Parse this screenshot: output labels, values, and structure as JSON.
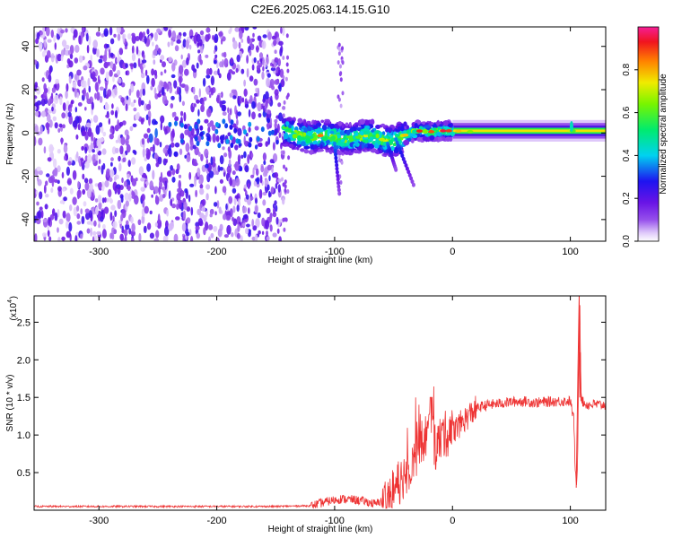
{
  "title": "C2E6.2025.063.14.15.G10",
  "chart_data": [
    {
      "type": "heatmap",
      "xlabel": "Height of straight line (km)",
      "ylabel": "Frequency (Hz)",
      "xlim": [
        -355,
        130
      ],
      "ylim": [
        -50,
        49
      ],
      "x_ticks": [
        -300,
        -200,
        -100,
        0,
        100
      ],
      "y_ticks": [
        -40,
        -20,
        0,
        20,
        40
      ],
      "x_tick_labels": [
        "-300",
        "-200",
        "-100",
        "0",
        "100"
      ],
      "y_tick_labels": [
        "-40",
        "-20",
        "0",
        "20",
        "40"
      ],
      "colorbar": {
        "label": "Normalized spectral amplitude",
        "range": [
          0,
          1
        ],
        "ticks": [
          0.0,
          0.2,
          0.4,
          0.6,
          0.8
        ],
        "tick_labels": [
          "0.0",
          "0.2",
          "0.4",
          "0.6",
          "0.8"
        ],
        "colormap": "rainbow (white → violet → blue → cyan → green → yellow → orange → red → magenta)"
      },
      "regions": [
        {
          "name": "diffuse noise",
          "x_range": [
            -355,
            -143
          ],
          "f_range": [
            -50,
            49
          ]
        },
        {
          "name": "coherent signal band",
          "x_range": [
            -143,
            130
          ],
          "center_frequency": 0
        }
      ],
      "signal_ridge": [
        {
          "x": -140,
          "f": 0.5
        },
        {
          "x": -130,
          "f": -1
        },
        {
          "x": -120,
          "f": -2
        },
        {
          "x": -110,
          "f": -1
        },
        {
          "x": -100,
          "f": -2
        },
        {
          "x": -90,
          "f": -3
        },
        {
          "x": -80,
          "f": -2
        },
        {
          "x": -70,
          "f": -1
        },
        {
          "x": -60,
          "f": -3
        },
        {
          "x": -50,
          "f": -4
        },
        {
          "x": -40,
          "f": -1
        },
        {
          "x": -30,
          "f": 1
        },
        {
          "x": -20,
          "f": 0.5
        },
        {
          "x": -10,
          "f": 1
        },
        {
          "x": 0,
          "f": 1
        },
        {
          "x": 20,
          "f": 0.5
        },
        {
          "x": 60,
          "f": 0.3
        },
        {
          "x": 100,
          "f": 1
        },
        {
          "x": 130,
          "f": 0.5
        }
      ],
      "side_streaks": [
        {
          "x_from": -48,
          "x_to": -33,
          "f_from": -3,
          "f_to": -24
        },
        {
          "x_from": -55,
          "x_to": -48,
          "f_from": -5,
          "f_to": -17
        },
        {
          "x_from": -100,
          "x_to": -96,
          "f_from": -5,
          "f_to": -28
        }
      ]
    },
    {
      "type": "line",
      "xlabel": "Height of straight line (km)",
      "ylabel": "SNR (10 * v/v)",
      "y_multiplier": "(x10",
      "y_multiplier_exp": "4",
      "y_multiplier_close": ")",
      "xlim": [
        -355,
        130
      ],
      "ylim": [
        0,
        2.85
      ],
      "x_ticks": [
        -300,
        -200,
        -100,
        0,
        100
      ],
      "y_ticks": [
        0.5,
        1.0,
        1.5,
        2.0,
        2.5
      ],
      "x_tick_labels": [
        "-300",
        "-200",
        "-100",
        "0",
        "100"
      ],
      "y_tick_labels": [
        "0.5",
        "1.0",
        "1.5",
        "2.0",
        "2.5"
      ],
      "color": "#ee3333",
      "series": [
        {
          "x": [
            -355,
            -300,
            -250,
            -200,
            -150,
            -120,
            -105,
            -95,
            -85,
            -75,
            -65,
            -55,
            -50,
            -45,
            -40,
            -35,
            -30,
            -25,
            -20,
            -17,
            -15,
            -10,
            -5,
            0,
            5,
            10,
            15,
            20,
            25,
            30,
            40,
            50,
            60,
            70,
            80,
            90,
            100,
            103,
            104,
            105,
            106,
            107,
            108,
            109,
            110,
            112,
            115,
            120,
            125,
            130
          ],
          "y": [
            0.05,
            0.05,
            0.05,
            0.05,
            0.05,
            0.06,
            0.12,
            0.15,
            0.14,
            0.12,
            0.08,
            0.18,
            0.25,
            0.38,
            0.5,
            0.62,
            0.78,
            0.92,
            1.05,
            1.15,
            0.8,
            0.95,
            1.02,
            1.05,
            1.12,
            1.2,
            1.28,
            1.35,
            1.38,
            1.4,
            1.42,
            1.44,
            1.45,
            1.43,
            1.44,
            1.45,
            1.45,
            1.2,
            0.6,
            0.3,
            0.5,
            1.8,
            2.85,
            1.6,
            1.45,
            1.42,
            1.4,
            1.41,
            1.4,
            1.4
          ]
        }
      ]
    }
  ]
}
